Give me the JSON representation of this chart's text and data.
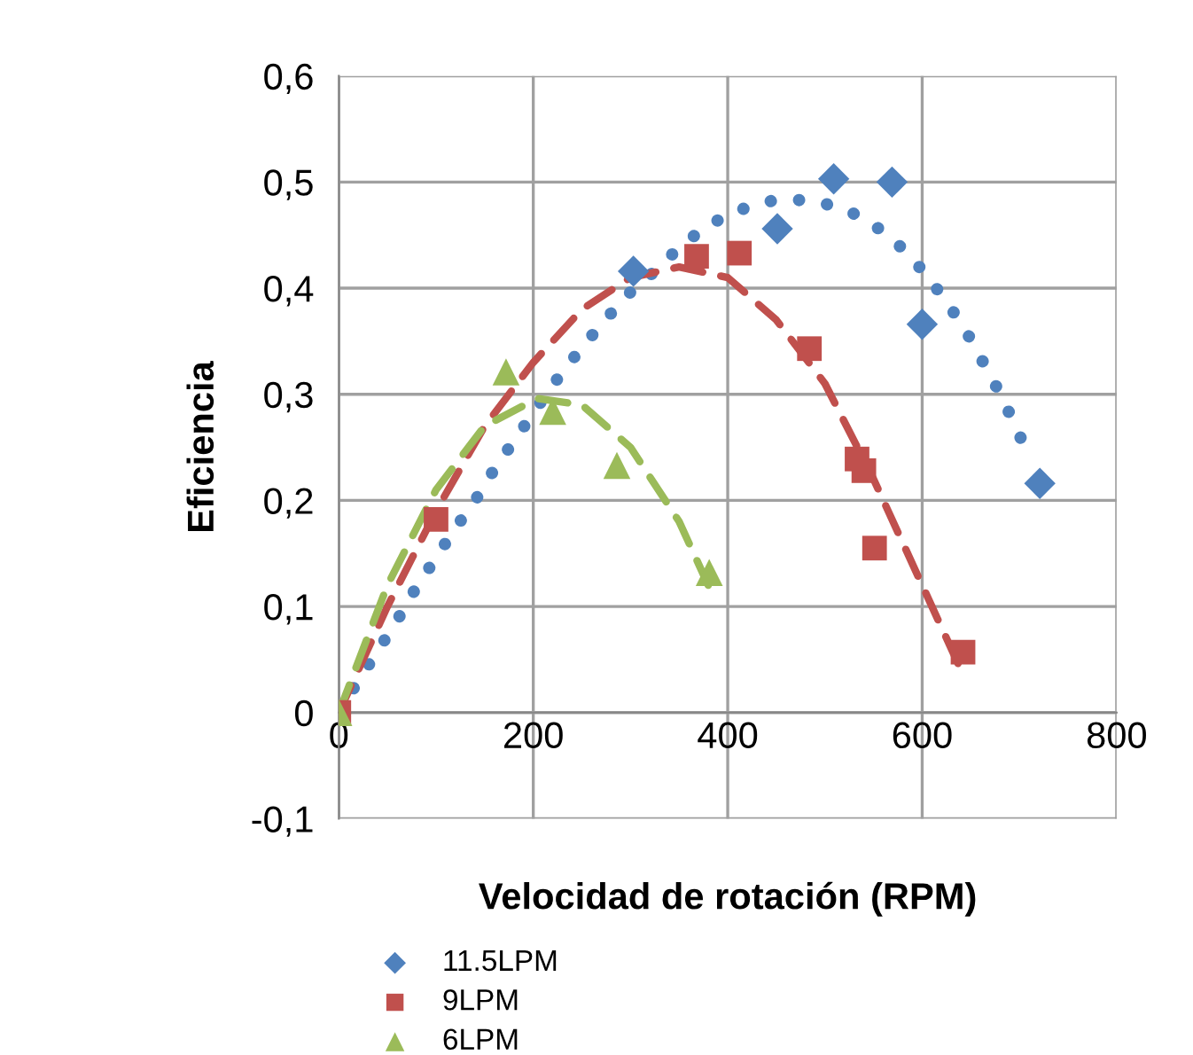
{
  "chart_data": {
    "type": "scatter",
    "xlabel": "Velocidad de rotación (RPM)",
    "ylabel": "Eficiencia",
    "xlim": [
      0,
      800
    ],
    "xticks": [
      0,
      200,
      400,
      600,
      800
    ],
    "ylim": [
      -0.1,
      0.6
    ],
    "yticks": [
      {
        "value": -0.1,
        "label": "-0,1"
      },
      {
        "value": 0,
        "label": "0"
      },
      {
        "value": 0.1,
        "label": "0,1"
      },
      {
        "value": 0.2,
        "label": "0,2"
      },
      {
        "value": 0.3,
        "label": "0,3"
      },
      {
        "value": 0.4,
        "label": "0,4"
      },
      {
        "value": 0.5,
        "label": "0,5"
      },
      {
        "value": 0.6,
        "label": "0,6"
      }
    ],
    "grid": true,
    "legend": "bottom",
    "series": [
      {
        "name": "11.5LPM",
        "marker": "diamond",
        "color": "#4f81bd",
        "x": [
          303,
          451,
          509,
          569,
          600,
          721
        ],
        "values": [
          0.416,
          0.456,
          0.503,
          0.5,
          0.366,
          0.216
        ]
      },
      {
        "name": "9LPM",
        "marker": "square",
        "color": "#c0504d",
        "x": [
          0,
          100,
          368,
          412,
          484,
          533,
          540,
          551,
          642
        ],
        "values": [
          0,
          0.182,
          0.43,
          0.433,
          0.343,
          0.239,
          0.228,
          0.155,
          0.057
        ]
      },
      {
        "name": "6LPM",
        "marker": "triangle",
        "color": "#9bbb59",
        "x": [
          0,
          172,
          220,
          286,
          381
        ],
        "values": [
          0,
          0.321,
          0.284,
          0.233,
          0.132
        ]
      },
      {
        "type": "line",
        "line_style": "dotted",
        "color": "#4f81bd",
        "x": [
          0,
          20,
          40,
          60,
          79,
          100,
          120,
          141,
          161,
          184,
          205,
          226,
          249,
          272,
          296,
          325,
          352,
          381,
          413,
          448,
          484,
          520,
          550,
          579,
          604,
          626,
          646,
          664,
          681,
          697,
          712
        ],
        "values": [
          0,
          0.03,
          0.058,
          0.087,
          0.117,
          0.146,
          0.174,
          0.201,
          0.231,
          0.261,
          0.289,
          0.316,
          0.343,
          0.368,
          0.393,
          0.416,
          0.44,
          0.46,
          0.474,
          0.483,
          0.483,
          0.475,
          0.46,
          0.438,
          0.413,
          0.386,
          0.358,
          0.328,
          0.299,
          0.268,
          0.236
        ]
      },
      {
        "type": "line",
        "line_style": "dashed",
        "color": "#c0504d",
        "x": [
          0,
          50,
          100,
          150,
          200,
          250,
          300,
          350,
          400,
          450,
          500,
          550,
          600,
          640
        ],
        "values": [
          0,
          0.1,
          0.19,
          0.27,
          0.33,
          0.38,
          0.41,
          0.42,
          0.41,
          0.37,
          0.31,
          0.22,
          0.12,
          0.04
        ]
      },
      {
        "type": "line",
        "line_style": "dashed",
        "color": "#9bbb59",
        "x": [
          0,
          50,
          100,
          150,
          204,
          250,
          300,
          350,
          380
        ],
        "values": [
          0,
          0.12,
          0.21,
          0.27,
          0.296,
          0.29,
          0.25,
          0.18,
          0.12
        ]
      }
    ]
  }
}
